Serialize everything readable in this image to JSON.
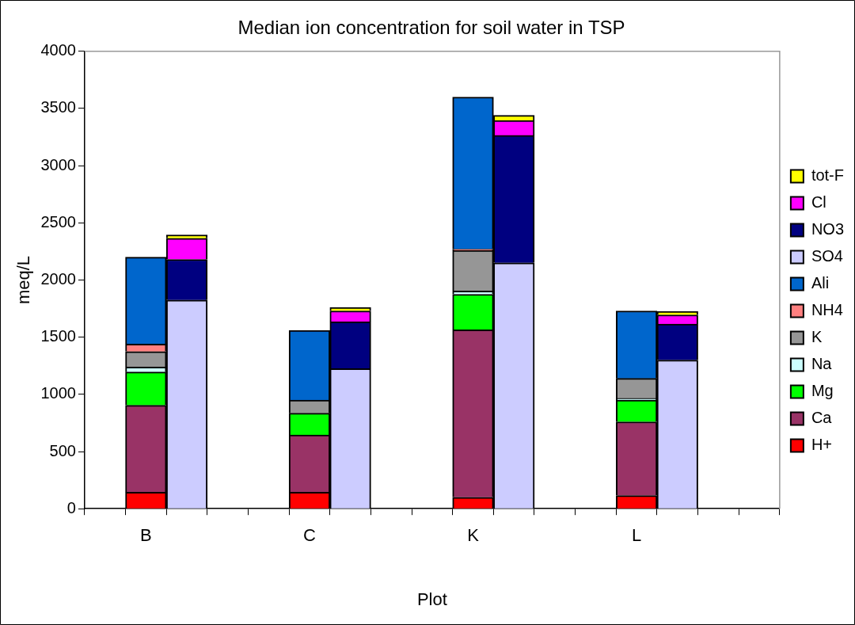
{
  "chart_data": {
    "type": "bar",
    "title": "Median ion concentration for soil water in TSP",
    "xlabel": "Plot",
    "ylabel": "meq/L",
    "stacked": true,
    "grid": false,
    "legend": "right",
    "categories": [
      null,
      "B",
      null,
      null,
      null,
      "C",
      null,
      null,
      null,
      "K",
      null,
      null,
      null,
      "L",
      null,
      null,
      null
    ],
    "ylim": [
      0,
      4000
    ],
    "yticks": [
      0,
      500,
      1000,
      1500,
      2000,
      2500,
      3000,
      3500,
      4000
    ],
    "series": [
      {
        "name": "H+",
        "color": "#ff0000",
        "values": [
          null,
          145,
          null,
          null,
          null,
          145,
          null,
          null,
          null,
          100,
          null,
          null,
          null,
          115,
          null,
          null,
          null
        ]
      },
      {
        "name": "Ca",
        "color": "#993366",
        "values": [
          null,
          760,
          null,
          null,
          null,
          500,
          null,
          null,
          null,
          1465,
          null,
          null,
          null,
          645,
          null,
          null,
          null
        ]
      },
      {
        "name": "Mg",
        "color": "#00ff00",
        "values": [
          null,
          290,
          null,
          null,
          null,
          190,
          null,
          null,
          null,
          310,
          null,
          null,
          null,
          190,
          null,
          null,
          null
        ]
      },
      {
        "name": "Na",
        "color": "#ccffff",
        "values": [
          null,
          45,
          null,
          null,
          null,
          null,
          null,
          null,
          null,
          30,
          null,
          null,
          null,
          15,
          null,
          null,
          null
        ]
      },
      {
        "name": "K",
        "color": "#969696",
        "values": [
          null,
          135,
          null,
          null,
          null,
          115,
          null,
          null,
          null,
          355,
          null,
          null,
          null,
          175,
          null,
          null,
          null
        ]
      },
      {
        "name": "NH4",
        "color": "#ff8080",
        "values": [
          null,
          65,
          null,
          null,
          null,
          null,
          null,
          null,
          null,
          10,
          null,
          null,
          null,
          null,
          null,
          null,
          null
        ]
      },
      {
        "name": "Ali",
        "color": "#0066cc",
        "values": [
          null,
          760,
          null,
          null,
          null,
          610,
          null,
          null,
          null,
          1330,
          null,
          null,
          null,
          590,
          null,
          null,
          null
        ]
      },
      {
        "name": "SO4",
        "color": "#ccccff",
        "values": [
          null,
          null,
          1825,
          null,
          null,
          null,
          1225,
          null,
          null,
          null,
          2150,
          null,
          null,
          null,
          1300,
          null,
          null
        ]
      },
      {
        "name": "NO3",
        "color": "#000080",
        "values": [
          null,
          null,
          355,
          null,
          null,
          null,
          410,
          null,
          null,
          null,
          1115,
          null,
          null,
          null,
          315,
          null,
          null
        ]
      },
      {
        "name": "Cl",
        "color": "#ff00ff",
        "values": [
          null,
          null,
          185,
          null,
          null,
          null,
          95,
          null,
          null,
          null,
          130,
          null,
          null,
          null,
          80,
          null,
          null
        ]
      },
      {
        "name": "tot-F",
        "color": "#ffff00",
        "values": [
          null,
          null,
          30,
          null,
          null,
          null,
          30,
          null,
          null,
          null,
          45,
          null,
          null,
          null,
          30,
          null,
          null
        ]
      }
    ]
  }
}
